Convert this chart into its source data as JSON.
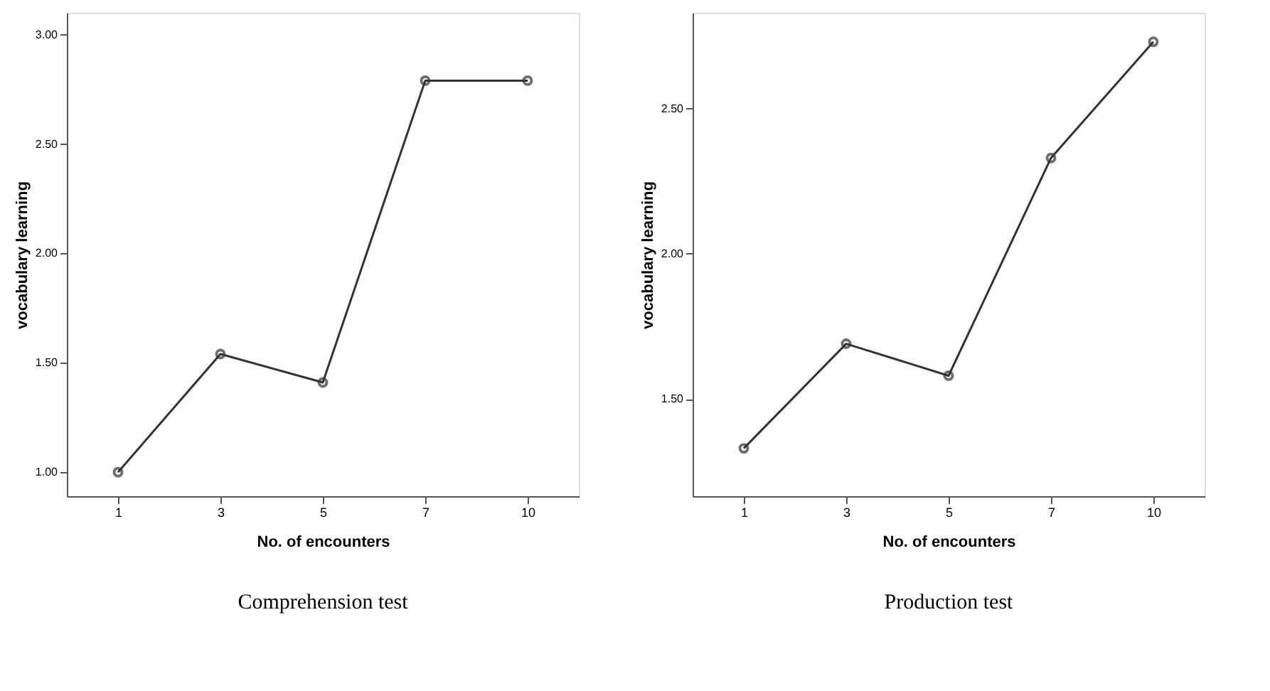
{
  "chart_data": [
    {
      "type": "line",
      "title": "Comprehension test",
      "xlabel": "No. of encounters",
      "ylabel": "vocabulary learning",
      "categories": [
        "1",
        "3",
        "5",
        "7",
        "10"
      ],
      "marker": "circle",
      "grid": false,
      "series": [
        {
          "color": "#333333",
          "values": [
            1.0,
            1.54,
            1.41,
            2.79,
            2.79
          ]
        }
      ],
      "ylim": [
        0.89,
        3.1
      ],
      "yticks": [
        {
          "value": 1,
          "label": "1.00"
        },
        {
          "value": 1.5,
          "label": "1.50"
        },
        {
          "value": 2,
          "label": "2.00"
        },
        {
          "value": 2.5,
          "label": "2.50"
        },
        {
          "value": 3,
          "label": "3.00"
        }
      ]
    },
    {
      "type": "line",
      "title": "Production test",
      "xlabel": "No. of encounters",
      "ylabel": "vocabulary learning",
      "categories": [
        "1",
        "3",
        "5",
        "7",
        "10"
      ],
      "marker": "circle",
      "grid": false,
      "series": [
        {
          "color": "#333333",
          "values": [
            1.33,
            1.69,
            1.58,
            2.33,
            2.73
          ]
        }
      ],
      "ylim": [
        1.165,
        2.83
      ],
      "yticks": [
        {
          "value": 1.5,
          "label": "1.50"
        },
        {
          "value": 2,
          "label": "2.00"
        },
        {
          "value": 2.5,
          "label": "2.50"
        }
      ]
    }
  ]
}
